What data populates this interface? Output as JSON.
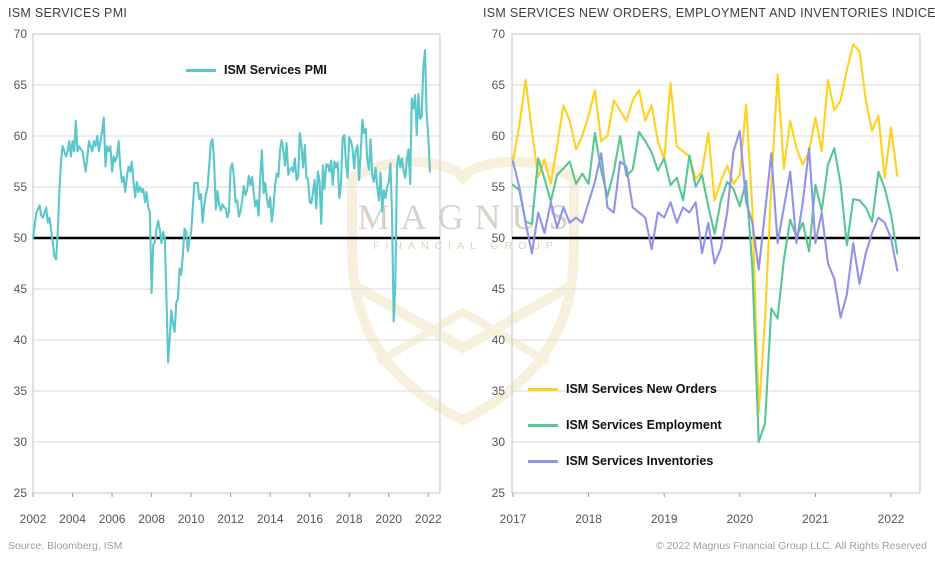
{
  "footer": {
    "source": "Source: Bloomberg, ISM",
    "copyright": "© 2022 Magnus Financial Group LLC. All Rights Reserved"
  },
  "watermark": {
    "title": "MAGNUS",
    "subtitle": "FINANCIAL GROUP",
    "shield_color": "#f6f0dc",
    "title_color": "#d5d2c8",
    "subtitle_color": "#ddd3b4"
  },
  "theme": {
    "background": "#ffffff",
    "grid": "#dadada",
    "plot_border": "#c6c6c6",
    "tick": "#9b9b9b",
    "axis_text": "#565656",
    "reference_line": "#000000",
    "teal": "#5cc7ca",
    "yellow": "#ffd21e",
    "green": "#57c793",
    "purple": "#9193ea"
  },
  "chart_data": [
    {
      "type": "line",
      "title": "ISM SERVICES PMI",
      "xlabel": "",
      "ylabel": "",
      "x_start": "2002-01",
      "frequency": "monthly",
      "ylim": [
        25,
        70
      ],
      "y_ticks": [
        25,
        30,
        35,
        40,
        45,
        50,
        55,
        60,
        65,
        70
      ],
      "x_ticks": [
        {
          "label": "2002",
          "m": 0
        },
        {
          "label": "2004",
          "m": 24
        },
        {
          "label": "2006",
          "m": 48
        },
        {
          "label": "2008",
          "m": 72
        },
        {
          "label": "2010",
          "m": 96
        },
        {
          "label": "2012",
          "m": 120
        },
        {
          "label": "2014",
          "m": 144
        },
        {
          "label": "2016",
          "m": 168
        },
        {
          "label": "2018",
          "m": 192
        },
        {
          "label": "2020",
          "m": 216
        },
        {
          "label": "2022",
          "m": 240
        }
      ],
      "reference_line": 50,
      "grid": "horizontal",
      "legend_position": "top-center-inside",
      "series": [
        {
          "name": "ISM Services PMI",
          "color": "#5cc7ca",
          "values": [
            50.0,
            51.2,
            52.5,
            52.8,
            53.2,
            52.2,
            52.0,
            52.5,
            53.0,
            51.5,
            52.0,
            50.8,
            49.5,
            48.2,
            47.9,
            50.5,
            54.5,
            57.5,
            59.0,
            58.5,
            58.0,
            58.5,
            59.5,
            58.0,
            59.5,
            58.5,
            61.5,
            58.5,
            59.0,
            58.7,
            58.5,
            57.5,
            56.5,
            58.0,
            59.5,
            59.0,
            58.5,
            59.5,
            59.0,
            60.0,
            58.5,
            59.5,
            60.5,
            61.8,
            57.0,
            59.0,
            58.5,
            59.0,
            56.5,
            58.0,
            57.5,
            58.0,
            59.5,
            57.0,
            55.5,
            56.0,
            54.5,
            56.0,
            57.0,
            56.5,
            57.5,
            55.5,
            54.0,
            55.5,
            54.5,
            55.0,
            54.5,
            54.8,
            53.5,
            54.5,
            53.0,
            52.5,
            44.6,
            49.3,
            49.6,
            50.9,
            51.7,
            50.8,
            49.5,
            50.6,
            50.0,
            44.4,
            37.8,
            40.1,
            42.9,
            41.6,
            40.8,
            43.7,
            44.0,
            47.0,
            46.4,
            48.4,
            50.9,
            50.6,
            48.7,
            49.8,
            50.5,
            53.0,
            55.4,
            55.4,
            55.4,
            53.8,
            54.3,
            51.5,
            53.2,
            54.3,
            55.0,
            57.1,
            59.4,
            59.7,
            57.3,
            52.8,
            54.6,
            53.3,
            52.7,
            53.3,
            53.0,
            52.9,
            52.0,
            52.6,
            56.8,
            57.3,
            56.0,
            53.5,
            53.7,
            52.1,
            52.6,
            53.7,
            55.1,
            54.2,
            54.7,
            56.1,
            55.2,
            56.0,
            54.4,
            53.1,
            53.7,
            52.2,
            56.0,
            58.6,
            54.4,
            55.4,
            53.9,
            53.0,
            54.0,
            51.6,
            53.1,
            55.2,
            56.3,
            56.0,
            58.7,
            59.6,
            58.6,
            57.1,
            59.3,
            56.2,
            56.7,
            56.9,
            56.5,
            57.8,
            55.7,
            56.0,
            60.3,
            59.0,
            56.9,
            59.1,
            55.9,
            55.8,
            53.5,
            53.4,
            54.5,
            55.7,
            52.9,
            56.5,
            55.5,
            51.4,
            57.1,
            54.8,
            57.2,
            57.2,
            56.5,
            57.6,
            55.2,
            57.5,
            56.9,
            57.4,
            53.9,
            55.3,
            59.8,
            60.1,
            57.4,
            55.9,
            59.9,
            59.5,
            58.8,
            56.8,
            58.6,
            59.1,
            55.7,
            58.5,
            61.6,
            60.3,
            60.7,
            57.6,
            56.7,
            59.7,
            56.1,
            55.5,
            56.9,
            55.1,
            53.7,
            56.4,
            52.6,
            54.7,
            53.9,
            55.0,
            55.5,
            57.3,
            52.5,
            41.8,
            45.4,
            57.1,
            58.1,
            56.9,
            57.8,
            56.6,
            55.9,
            57.7,
            58.7,
            55.3,
            63.7,
            62.7,
            64.0,
            60.1,
            64.1,
            61.7,
            61.9,
            66.7,
            68.4,
            62.3,
            59.9,
            56.5
          ]
        }
      ]
    },
    {
      "type": "line",
      "title": "ISM SERVICES NEW ORDERS, EMPLOYMENT AND INVENTORIES INDICES",
      "xlabel": "",
      "ylabel": "",
      "x_start": "2017-01",
      "frequency": "monthly",
      "ylim": [
        25,
        70
      ],
      "y_ticks": [
        25,
        30,
        35,
        40,
        45,
        50,
        55,
        60,
        65,
        70
      ],
      "x_ticks": [
        {
          "label": "2017",
          "m": 0
        },
        {
          "label": "2018",
          "m": 12
        },
        {
          "label": "2019",
          "m": 24
        },
        {
          "label": "2020",
          "m": 36
        },
        {
          "label": "2021",
          "m": 48
        },
        {
          "label": "2022",
          "m": 60
        }
      ],
      "reference_line": 50,
      "grid": "horizontal",
      "legend_position": "bottom-left-inside",
      "series": [
        {
          "name": "ISM Services New Orders",
          "color": "#ffd21e",
          "values": [
            57.5,
            61.0,
            65.5,
            60.5,
            56.0,
            57.7,
            55.3,
            59.0,
            63.0,
            61.5,
            58.7,
            60.0,
            62.0,
            64.5,
            59.5,
            60.0,
            63.5,
            62.5,
            61.5,
            63.5,
            64.5,
            61.5,
            63.0,
            59.5,
            57.7,
            65.2,
            59.0,
            58.5,
            58.0,
            55.8,
            56.5,
            60.3,
            53.7,
            55.6,
            57.1,
            55.3,
            56.2,
            63.1,
            52.9,
            32.9,
            41.9,
            55.2,
            66.0,
            56.8,
            61.5,
            58.8,
            57.2,
            58.5,
            61.8,
            58.5,
            65.5,
            62.5,
            63.5,
            66.5,
            69.0,
            68.3,
            63.5,
            60.5,
            62.0,
            55.9,
            60.8,
            56.1
          ]
        },
        {
          "name": "ISM Services Employment",
          "color": "#57c793",
          "values": [
            55.2,
            54.7,
            51.6,
            51.4,
            57.8,
            55.8,
            53.6,
            56.2,
            56.8,
            57.5,
            55.3,
            56.3,
            55.3,
            60.3,
            56.6,
            54.1,
            56.5,
            60.0,
            56.1,
            56.7,
            60.4,
            59.5,
            58.4,
            56.6,
            57.8,
            55.2,
            55.9,
            53.7,
            58.1,
            55.0,
            56.2,
            53.1,
            50.4,
            53.7,
            55.5,
            54.8,
            53.1,
            55.6,
            47.0,
            30.0,
            31.8,
            43.1,
            42.1,
            47.9,
            51.8,
            50.1,
            51.5,
            48.7,
            55.2,
            52.7,
            57.2,
            58.8,
            55.3,
            49.3,
            53.8,
            53.7,
            53.0,
            51.6,
            56.5,
            54.9,
            52.3,
            48.5
          ]
        },
        {
          "name": "ISM Services Inventories",
          "color": "#9193ea",
          "values": [
            57.5,
            55.0,
            51.5,
            48.5,
            52.5,
            50.5,
            53.5,
            51.0,
            53.0,
            51.5,
            52.0,
            51.5,
            53.5,
            55.5,
            58.3,
            53.0,
            52.5,
            57.5,
            57.0,
            53.0,
            52.5,
            52.0,
            48.9,
            52.5,
            52.0,
            53.5,
            51.5,
            53.0,
            52.5,
            53.5,
            48.5,
            51.5,
            47.5,
            49.0,
            52.5,
            58.5,
            60.5,
            53.5,
            51.5,
            46.9,
            52.5,
            58.3,
            49.5,
            53.0,
            56.5,
            49.5,
            53.5,
            58.8,
            49.5,
            52.5,
            47.5,
            46.0,
            42.2,
            44.5,
            49.5,
            45.5,
            48.5,
            50.5,
            52.0,
            51.5,
            50.0,
            46.8
          ]
        }
      ]
    }
  ]
}
